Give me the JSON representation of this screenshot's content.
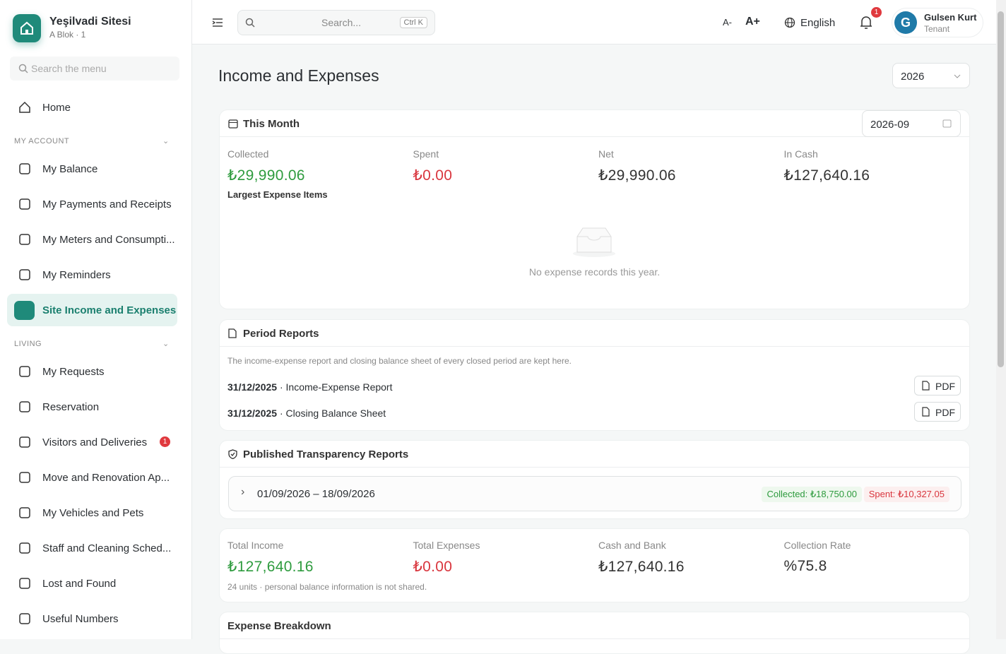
{
  "sidebar": {
    "brand": {
      "name": "Yeşilvadi Sitesi",
      "sub": "A Blok · 1"
    },
    "search": "Search the menu",
    "home": "Home",
    "sections": [
      {
        "title": "MY ACCOUNT",
        "items": [
          {
            "label": "My Balance"
          },
          {
            "label": "My Payments and Receipts"
          },
          {
            "label": "My Meters and Consumpti..."
          },
          {
            "label": "My Reminders"
          },
          {
            "label": "Site Income and Expenses"
          }
        ]
      },
      {
        "title": "LIVING",
        "items": [
          {
            "label": "My Requests"
          },
          {
            "label": "Reservation"
          },
          {
            "label": "Visitors and Deliveries",
            "badge": "1"
          },
          {
            "label": "Move and Renovation Ap..."
          },
          {
            "label": "My Vehicles and Pets"
          },
          {
            "label": "Staff and Cleaning Sched..."
          },
          {
            "label": "Lost and Found"
          },
          {
            "label": "Useful Numbers"
          }
        ]
      }
    ]
  },
  "header": {
    "search": "Search...",
    "shortcut": "Ctrl K",
    "font_smaller": "A-",
    "font_larger": "A+",
    "language": "English",
    "notifications": "1",
    "user": {
      "avatar": "G",
      "name": "Gulsen Kurt",
      "role": "Tenant"
    }
  },
  "main": {
    "title": "Income and Expenses",
    "year": "2026",
    "this_month": {
      "title": "This Month",
      "month": "2026-09",
      "stats": [
        {
          "label": "Collected",
          "value": "₺29,990.06"
        },
        {
          "label": "Spent",
          "value": "₺0.00"
        },
        {
          "label": "Net",
          "value": "₺29,990.06"
        },
        {
          "label": "In Cash",
          "value": "₺127,640.16"
        }
      ],
      "largest": "Largest Expense Items",
      "empty": "No expense records this year."
    },
    "period_reports": {
      "title": "Period Reports",
      "description": "The income-expense report and closing balance sheet of every closed period are kept here.",
      "reports": [
        {
          "date": "31/12/2025",
          "name": "· Income-Expense Report",
          "action": "PDF"
        },
        {
          "date": "31/12/2025",
          "name": "· Closing Balance Sheet",
          "action": "PDF"
        }
      ]
    },
    "transparency": {
      "title": "Published Transparency Reports",
      "rows": [
        {
          "range": "01/09/2026 – 18/09/2026",
          "collected": "Collected: ₺18,750.00",
          "spent": "Spent: ₺10,327.05"
        }
      ]
    },
    "summary": {
      "stats": [
        {
          "label": "Total Income",
          "value": "₺127,640.16"
        },
        {
          "label": "Total Expenses",
          "value": "₺0.00"
        },
        {
          "label": "Cash and Bank",
          "value": "₺127,640.16"
        },
        {
          "label": "Collection Rate",
          "value": "%75.8"
        }
      ],
      "note": "24 units · personal balance information is not shared."
    },
    "breakdown": {
      "title": "Expense Breakdown"
    }
  }
}
